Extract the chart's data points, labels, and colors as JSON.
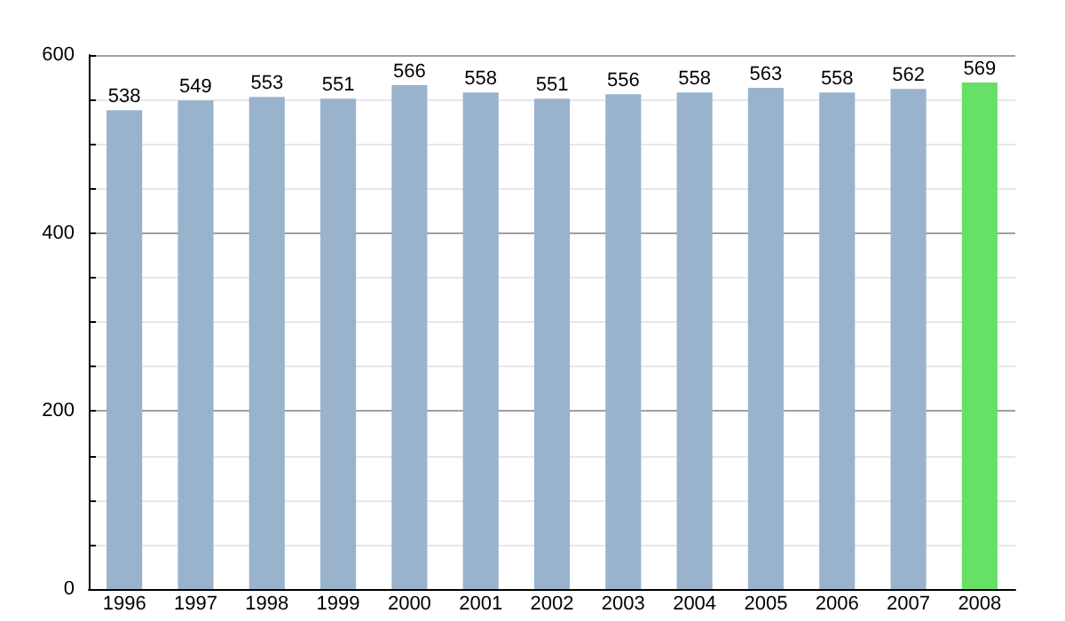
{
  "chart_data": {
    "type": "bar",
    "categories": [
      "1996",
      "1997",
      "1998",
      "1999",
      "2000",
      "2001",
      "2002",
      "2003",
      "2004",
      "2005",
      "2006",
      "2007",
      "2008"
    ],
    "values": [
      538,
      549,
      553,
      551,
      566,
      558,
      551,
      556,
      558,
      563,
      558,
      562,
      569
    ],
    "colors": [
      "#9ab3cc",
      "#9ab3cc",
      "#9ab3cc",
      "#9ab3cc",
      "#9ab3cc",
      "#9ab3cc",
      "#9ab3cc",
      "#9ab3cc",
      "#9ab3cc",
      "#9ab3cc",
      "#9ab3cc",
      "#9ab3cc",
      "#66e066"
    ],
    "ylim": [
      0,
      600
    ],
    "yticks": [
      0,
      {
        "value": 50,
        "label": null
      },
      {
        "value": 100,
        "label": null
      },
      {
        "value": 150,
        "label": null
      },
      200,
      {
        "value": 250,
        "label": null
      },
      {
        "value": 300,
        "label": null
      },
      {
        "value": 350,
        "label": null
      },
      400,
      {
        "value": 450,
        "label": null
      },
      {
        "value": 500,
        "label": null
      },
      {
        "value": 550,
        "label": null
      },
      600
    ],
    "data_labels": true,
    "grid": true
  }
}
